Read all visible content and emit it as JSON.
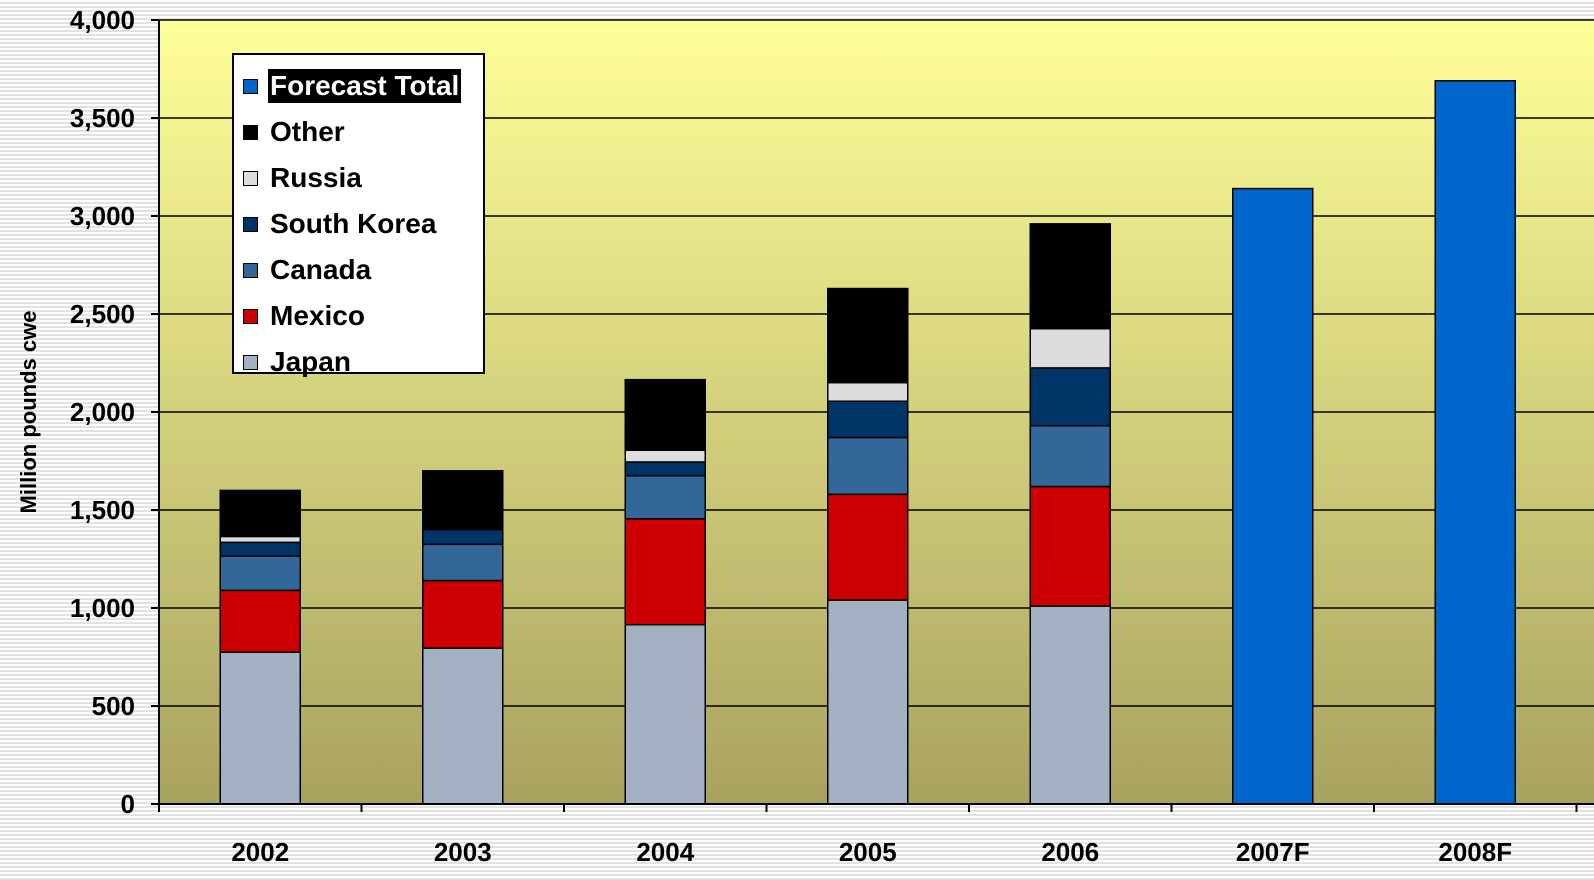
{
  "chart_data": {
    "type": "bar",
    "stacked": true,
    "title": "",
    "xlabel": "",
    "ylabel": "Million pounds cwe",
    "ylim": [
      0,
      4000
    ],
    "yticks": [
      0,
      500,
      1000,
      1500,
      2000,
      2500,
      3000,
      3500,
      4000
    ],
    "ytick_labels": [
      "0",
      "500",
      "1,000",
      "1,500",
      "2,000",
      "2,500",
      "3,000",
      "3,500",
      "4,000"
    ],
    "categories": [
      "2002",
      "2003",
      "2004",
      "2005",
      "2006",
      "2007F",
      "2008F"
    ],
    "series": [
      {
        "name": "Japan",
        "color": "#a3b1c2",
        "values": [
          775,
          795,
          915,
          1040,
          1010,
          null,
          null
        ]
      },
      {
        "name": "Mexico",
        "color": "#cc0000",
        "values": [
          315,
          345,
          540,
          540,
          610,
          null,
          null
        ]
      },
      {
        "name": "Canada",
        "color": "#336699",
        "values": [
          175,
          185,
          220,
          290,
          310,
          null,
          null
        ]
      },
      {
        "name": "South Korea",
        "color": "#003366",
        "values": [
          70,
          75,
          70,
          185,
          295,
          null,
          null
        ]
      },
      {
        "name": "Russia",
        "color": "#dddddd",
        "values": [
          30,
          0,
          60,
          95,
          200,
          null,
          null
        ]
      },
      {
        "name": "Other",
        "color": "#000000",
        "values": [
          235,
          300,
          360,
          480,
          535,
          null,
          null
        ]
      },
      {
        "name": "Forecast Total",
        "color": "#0066cc",
        "values": [
          null,
          null,
          null,
          null,
          null,
          3140,
          3690
        ]
      }
    ],
    "legend": {
      "position": "top-left",
      "order": [
        "Forecast Total",
        "Other",
        "Russia",
        "South Korea",
        "Canada",
        "Mexico",
        "Japan"
      ],
      "highlighted": "Forecast Total"
    },
    "grid": true,
    "background_gradient": [
      "#ffff99",
      "#a8a260"
    ]
  }
}
